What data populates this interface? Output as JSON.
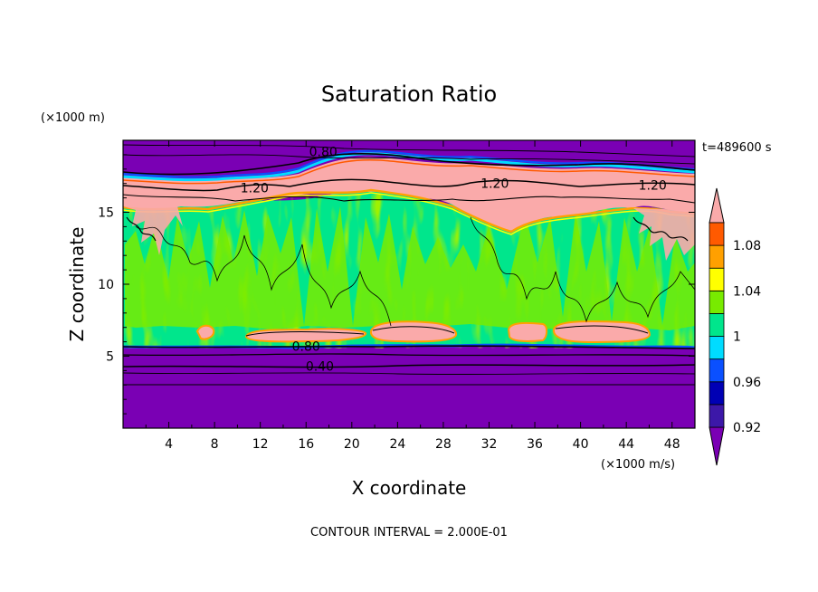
{
  "chart_data": {
    "type": "heatmap",
    "title": "Saturation Ratio",
    "xlabel": "X coordinate",
    "ylabel": "Z coordinate",
    "x_unit": "(×1000 m/s)",
    "y_unit": "(×1000 m)",
    "time_label": "t=489600 s",
    "footer": "CONTOUR INTERVAL = 2.000E-01",
    "xlim": [
      0,
      50
    ],
    "ylim": [
      0,
      20
    ],
    "x_ticks": [
      4,
      8,
      12,
      16,
      20,
      24,
      28,
      32,
      36,
      40,
      44,
      48
    ],
    "y_ticks": [
      5,
      10,
      15
    ],
    "colorbar": {
      "levels": [
        0.92,
        0.94,
        0.96,
        0.98,
        1.0,
        1.02,
        1.04,
        1.06,
        1.08,
        1.1
      ],
      "labels": [
        "0.92",
        "0.96",
        "1",
        "1.04",
        "1.08"
      ],
      "colors": [
        "#7a00b4",
        "#3c18a8",
        "#0000b4",
        "#0a50ff",
        "#00dcff",
        "#00e68c",
        "#78eb00",
        "#ffff00",
        "#ffa000",
        "#ff5a00",
        "#ff1e1e",
        "#faaaaa"
      ]
    },
    "contour_labels": [
      {
        "text": "0.80",
        "x": 17.5,
        "z": 19.2
      },
      {
        "text": "1.20",
        "x": 11.5,
        "z": 16.7
      },
      {
        "text": "1.20",
        "x": 32.5,
        "z": 17.0
      },
      {
        "text": "1.20",
        "x": 46.3,
        "z": 16.9
      },
      {
        "text": "0.80",
        "x": 16.0,
        "z": 5.7
      },
      {
        "text": "0.40",
        "x": 17.2,
        "z": 4.3
      }
    ]
  }
}
